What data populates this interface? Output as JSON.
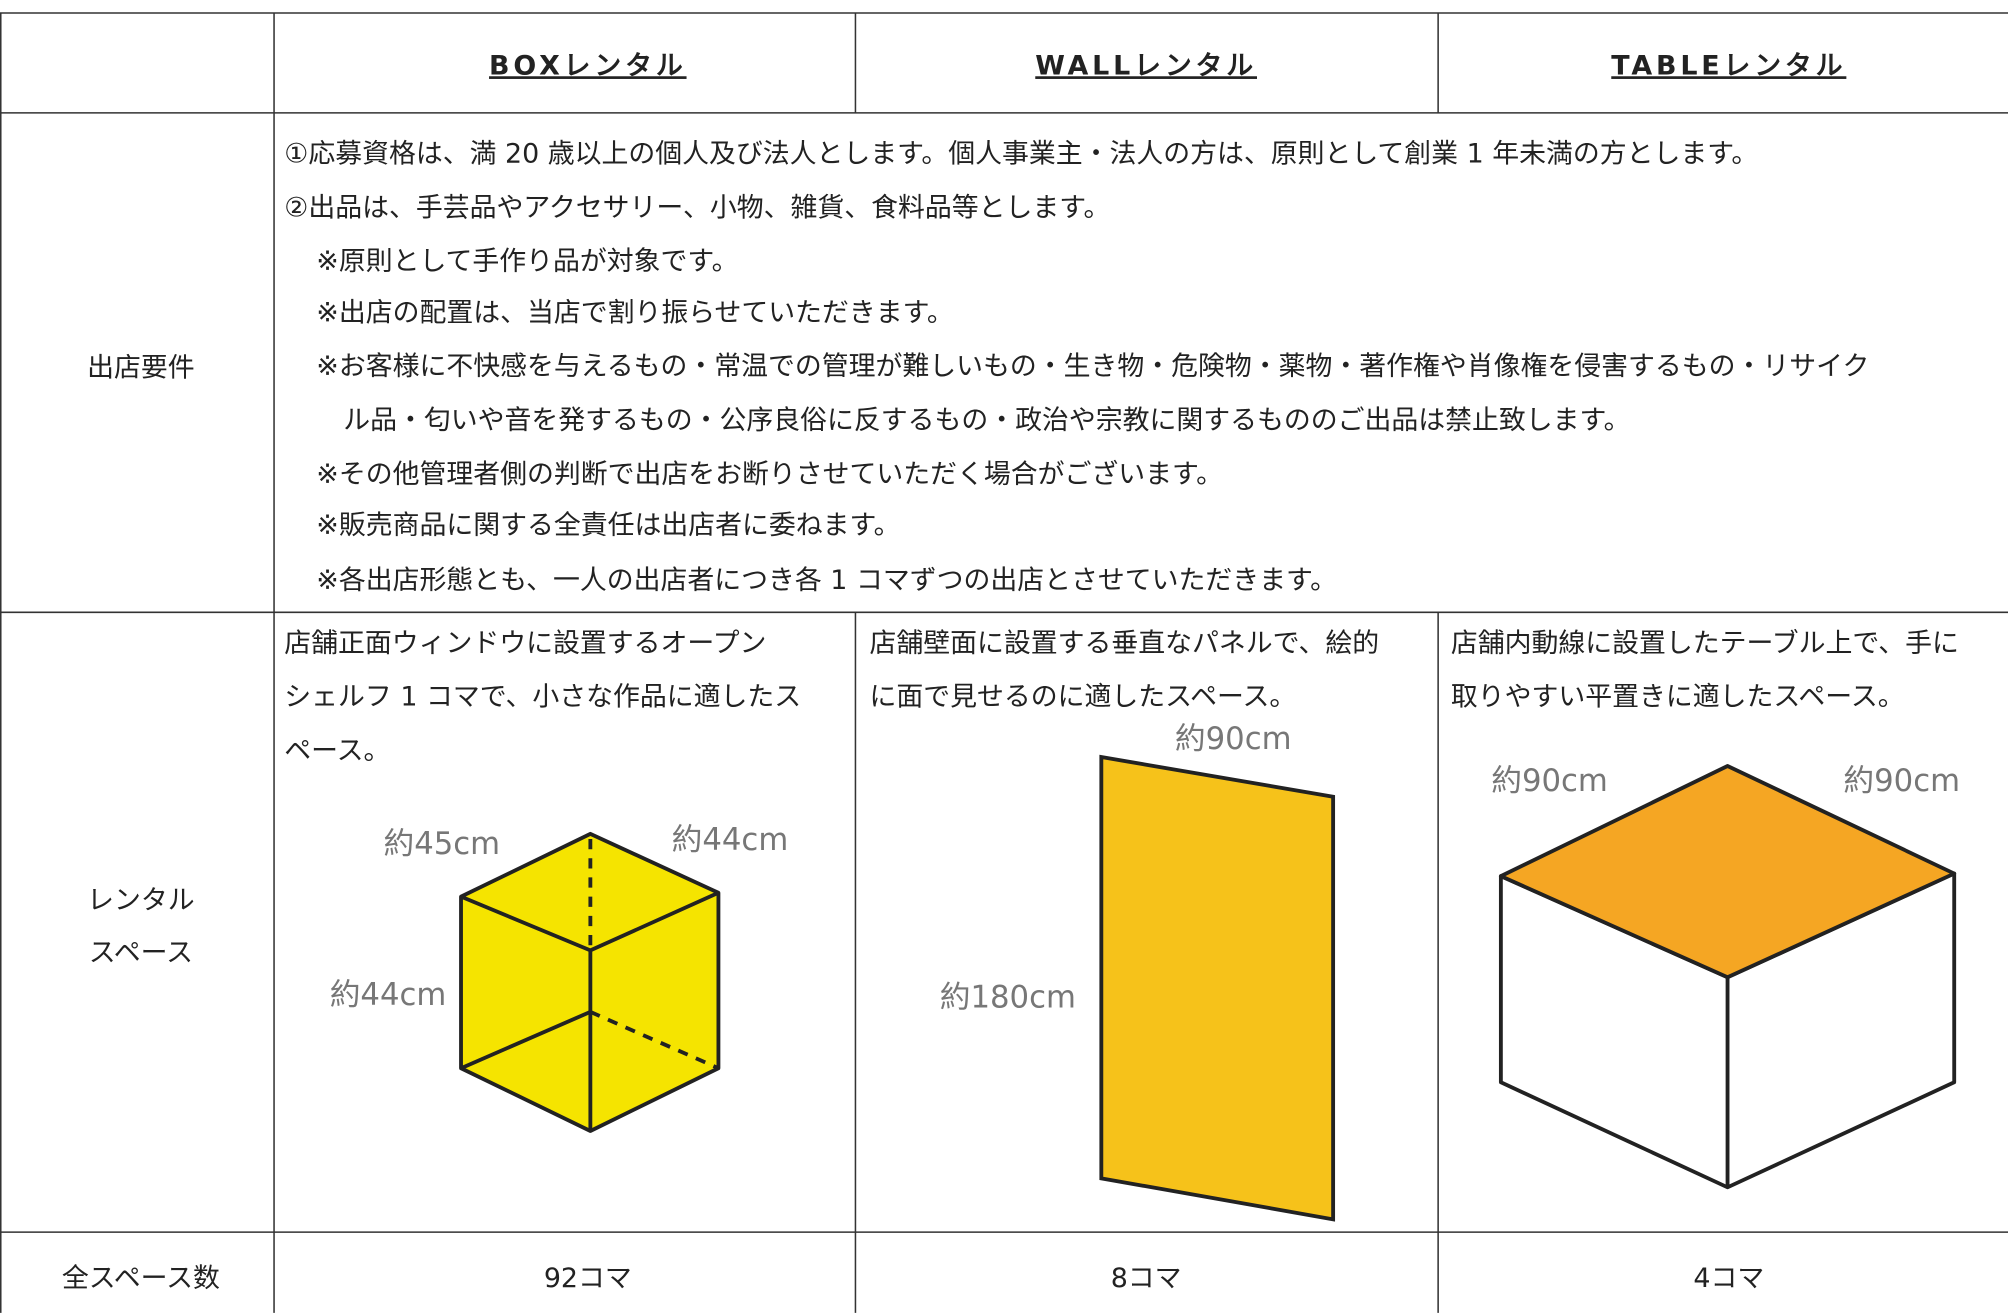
{
  "header": {
    "columns": [
      "BOXレンタル",
      "WALLレンタル",
      "TABLEレンタル"
    ]
  },
  "requirements": {
    "label": "出店要件",
    "lines": [
      "①応募資格は、満 20 歳以上の個人及び法人とします。個人事業主・法人の方は、原則として創業 1 年未満の方とします。",
      "②出品は、手芸品やアクセサリー、小物、雑貨、食料品等とします。",
      "※原則として手作り品が対象です。",
      "※出店の配置は、当店で割り振らせていただきます。",
      "※お客様に不快感を与えるもの・常温での管理が難しいもの・生き物・危険物・薬物・著作権や肖像権を侵害するもの・リサイク",
      "ル品・匂いや音を発するもの・公序良俗に反するもの・政治や宗教に関するもののご出品は禁止致します。",
      "※その他管理者側の判断で出店をお断りさせていただく場合がございます。",
      "※販売商品に関する全責任は出店者に委ねます。",
      "※各出店形態とも、一人の出店者につき各 1 コマずつの出店とさせていただきます。"
    ]
  },
  "rental_space": {
    "label_lines": [
      "レンタル",
      "スペース"
    ],
    "descriptions": [
      [
        "店舗正面ウィンドウに設置するオープン",
        "シェルフ 1 コマで、小さな作品に適したス",
        "ペース。"
      ],
      [
        "店舗壁面に設置する垂直なパネルで、絵的",
        "に面で見せるのに適したスペース。"
      ],
      [
        "店舗内動線に設置したテーブル上で、手に",
        "取りやすい平置きに適したスペース。"
      ]
    ],
    "box_dimensions": [
      "約45cm",
      "約44cm",
      "約44cm"
    ],
    "wall_dimensions": [
      "約90cm",
      "約180cm"
    ],
    "table_dimensions": [
      "約90cm",
      "約90cm"
    ]
  },
  "total": {
    "label": "全スペース数",
    "counts": [
      "92コマ",
      "8コマ",
      "4コマ"
    ]
  }
}
